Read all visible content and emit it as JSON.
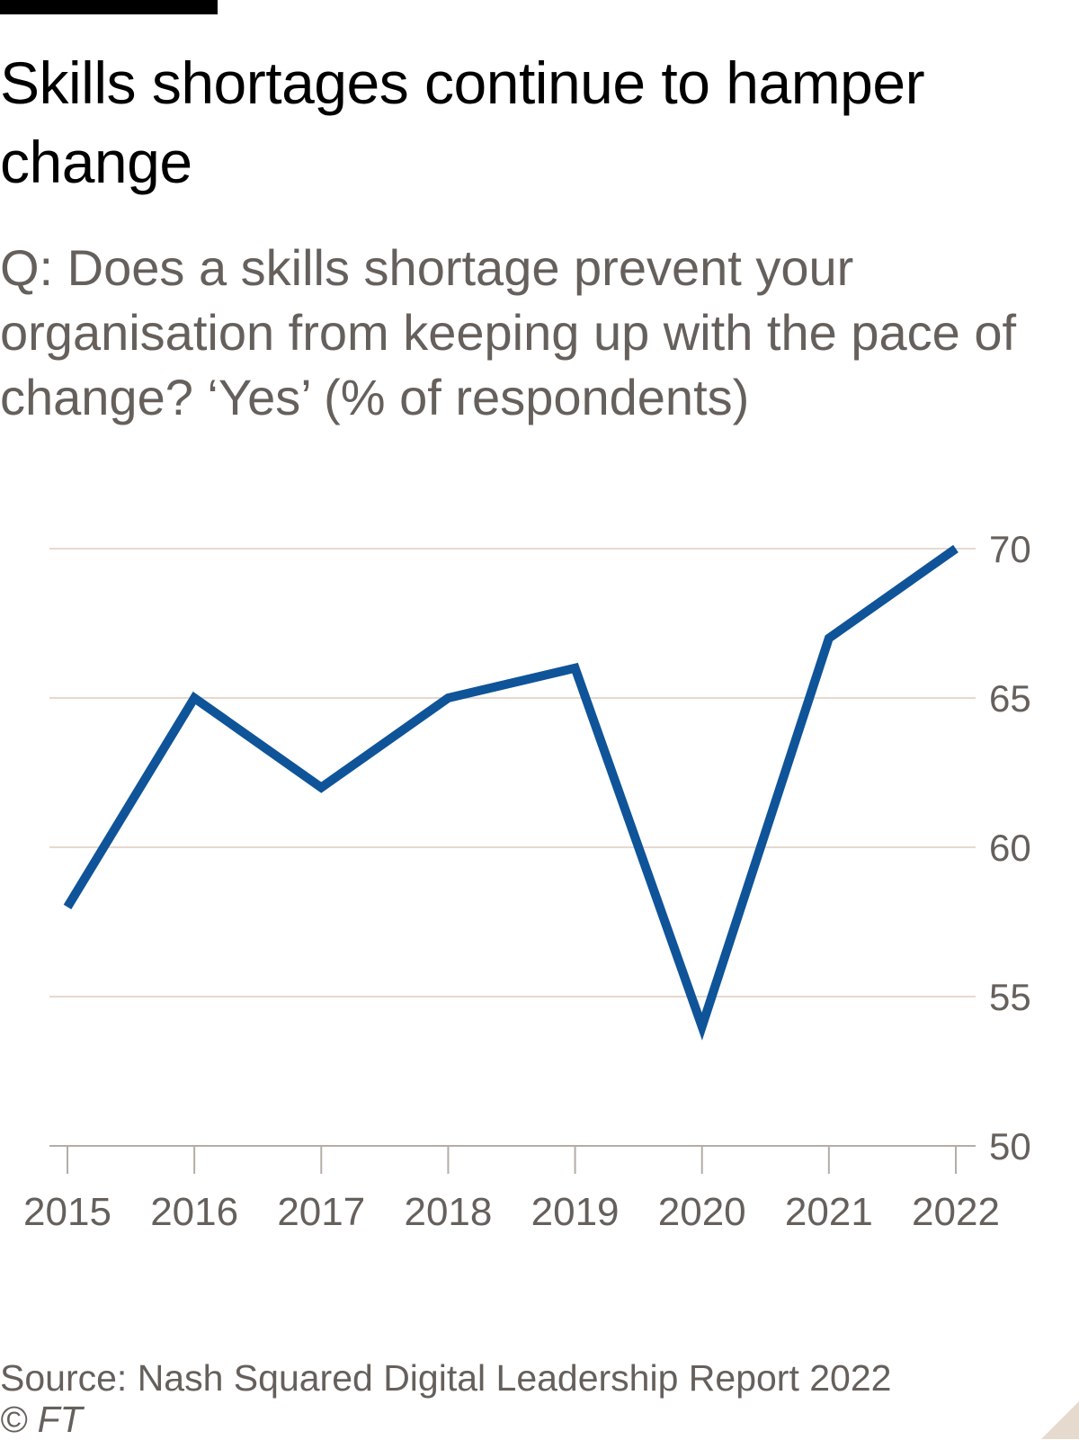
{
  "header": {
    "title": "Skills shortages continue to hamper change",
    "subtitle": "Q: Does a skills shortage prevent your organisation from keeping up with the pace of change? ‘Yes’ (% of respondents)"
  },
  "footer": {
    "source": "Source: Nash Squared Digital Leadership Report 2022",
    "copyright": "© FT"
  },
  "colors": {
    "line": "#0f5499",
    "grid": "#e6d9ce",
    "axis": "#b5aca5",
    "label": "#66605c",
    "background": "#ffffff"
  },
  "chart_data": {
    "type": "line",
    "title": "Skills shortages continue to hamper change",
    "subtitle": "Q: Does a skills shortage prevent your organisation from keeping up with the pace of change? ‘Yes’ (% of respondents)",
    "x": [
      "2015",
      "2016",
      "2017",
      "2018",
      "2019",
      "2020",
      "2021",
      "2022"
    ],
    "series": [
      {
        "name": "Yes",
        "values": [
          58,
          65,
          62,
          65,
          66,
          54,
          67,
          70
        ]
      }
    ],
    "ylim": [
      50,
      70
    ],
    "yticks": [
      50,
      55,
      60,
      65,
      70
    ],
    "xlabel": "",
    "ylabel": "",
    "grid": true,
    "y_axis_position": "right"
  }
}
